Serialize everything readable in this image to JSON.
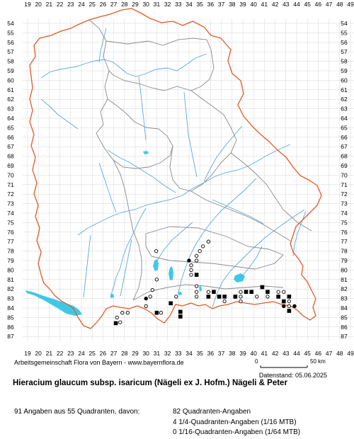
{
  "map": {
    "columns": [
      "19",
      "20",
      "21",
      "22",
      "23",
      "24",
      "25",
      "26",
      "27",
      "28",
      "29",
      "30",
      "31",
      "32",
      "33",
      "34",
      "35",
      "36",
      "37",
      "38",
      "39",
      "40",
      "41",
      "42",
      "43",
      "44",
      "45",
      "46",
      "47",
      "48",
      "49"
    ],
    "rows": [
      "54",
      "55",
      "56",
      "57",
      "58",
      "59",
      "60",
      "61",
      "62",
      "63",
      "64",
      "65",
      "66",
      "67",
      "68",
      "69",
      "70",
      "71",
      "72",
      "73",
      "74",
      "75",
      "76",
      "77",
      "78",
      "79",
      "80",
      "81",
      "82",
      "83",
      "84",
      "85",
      "86",
      "87"
    ],
    "colors": {
      "border": "#e05a28",
      "districts": "#8a8a8a",
      "rivers": "#5ba8e0",
      "lakes": "#3ec8e6",
      "grid": "#d6d6d6",
      "labels": "#000000"
    },
    "records": [
      {
        "col": 30.95,
        "row": 78.0,
        "symbol": "open-circle"
      },
      {
        "col": 31.0,
        "row": 81.0,
        "symbol": "open-circle"
      },
      {
        "col": 30.6,
        "row": 82.1,
        "symbol": "open-circle"
      },
      {
        "col": 30.0,
        "row": 83.0,
        "symbol": "filled-circle"
      },
      {
        "col": 30.4,
        "row": 82.8,
        "symbol": "open-circle"
      },
      {
        "col": 30.0,
        "row": 83.8,
        "symbol": "open-circle"
      },
      {
        "col": 28.3,
        "row": 84.5,
        "symbol": "open-circle"
      },
      {
        "col": 27.8,
        "row": 84.5,
        "symbol": "open-circle"
      },
      {
        "col": 27.3,
        "row": 85.0,
        "symbol": "open-circle"
      },
      {
        "col": 27.6,
        "row": 85.5,
        "symbol": "open-circle"
      },
      {
        "col": 27.2,
        "row": 85.6,
        "symbol": "filled-square"
      },
      {
        "col": 31.4,
        "row": 84.5,
        "symbol": "open-circle"
      },
      {
        "col": 31.0,
        "row": 84.5,
        "symbol": "filled-square"
      },
      {
        "col": 32.3,
        "row": 83.5,
        "symbol": "filled-square"
      },
      {
        "col": 32.8,
        "row": 82.8,
        "symbol": "open-circle"
      },
      {
        "col": 33.2,
        "row": 84.4,
        "symbol": "filled-square"
      },
      {
        "col": 33.2,
        "row": 84.9,
        "symbol": "filled-square"
      },
      {
        "col": 34.0,
        "row": 79.0,
        "symbol": "filled-circle"
      },
      {
        "col": 34.2,
        "row": 79.5,
        "symbol": "open-circle"
      },
      {
        "col": 34.2,
        "row": 80.0,
        "symbol": "open-circle"
      },
      {
        "col": 34.2,
        "row": 80.5,
        "symbol": "open-circle"
      },
      {
        "col": 34.7,
        "row": 80.5,
        "symbol": "filled-square"
      },
      {
        "col": 34.7,
        "row": 78.5,
        "symbol": "open-circle"
      },
      {
        "col": 34.7,
        "row": 79.0,
        "symbol": "open-circle"
      },
      {
        "col": 35.0,
        "row": 78.0,
        "symbol": "open-circle"
      },
      {
        "col": 35.3,
        "row": 77.5,
        "symbol": "open-circle"
      },
      {
        "col": 35.8,
        "row": 77.0,
        "symbol": "open-circle"
      },
      {
        "col": 34.7,
        "row": 81.7,
        "symbol": "open-circle"
      },
      {
        "col": 34.7,
        "row": 82.3,
        "symbol": "open-circle"
      },
      {
        "col": 34.7,
        "row": 82.8,
        "symbol": "open-circle"
      },
      {
        "col": 35.8,
        "row": 82.3,
        "symbol": "open-circle"
      },
      {
        "col": 35.8,
        "row": 82.8,
        "symbol": "filled-square"
      },
      {
        "col": 36.3,
        "row": 82.3,
        "symbol": "filled-square"
      },
      {
        "col": 36.8,
        "row": 82.8,
        "symbol": "filled-square"
      },
      {
        "col": 37.3,
        "row": 82.8,
        "symbol": "filled-square"
      },
      {
        "col": 37.3,
        "row": 83.3,
        "symbol": "open-circle"
      },
      {
        "col": 38.3,
        "row": 82.8,
        "symbol": "filled-square"
      },
      {
        "col": 38.8,
        "row": 82.3,
        "symbol": "open-circle"
      },
      {
        "col": 38.8,
        "row": 82.8,
        "symbol": "open-circle"
      },
      {
        "col": 38.8,
        "row": 83.3,
        "symbol": "open-circle"
      },
      {
        "col": 39.3,
        "row": 82.3,
        "symbol": "filled-square"
      },
      {
        "col": 39.8,
        "row": 82.3,
        "symbol": "filled-square"
      },
      {
        "col": 40.3,
        "row": 82.8,
        "symbol": "open-circle"
      },
      {
        "col": 40.8,
        "row": 81.8,
        "symbol": "filled-square"
      },
      {
        "col": 41.3,
        "row": 82.3,
        "symbol": "filled-square"
      },
      {
        "col": 41.3,
        "row": 82.8,
        "symbol": "open-circle"
      },
      {
        "col": 42.3,
        "row": 82.3,
        "symbol": "open-circle"
      },
      {
        "col": 42.8,
        "row": 82.3,
        "symbol": "open-circle"
      },
      {
        "col": 42.3,
        "row": 82.8,
        "symbol": "filled-square"
      },
      {
        "col": 42.8,
        "row": 83.3,
        "symbol": "filled-square"
      },
      {
        "col": 43.3,
        "row": 82.8,
        "symbol": "filled-square"
      },
      {
        "col": 43.3,
        "row": 83.3,
        "symbol": "open-circle"
      },
      {
        "col": 42.8,
        "row": 83.8,
        "symbol": "filled-circle"
      },
      {
        "col": 43.3,
        "row": 83.8,
        "symbol": "open-circle"
      },
      {
        "col": 43.8,
        "row": 83.8,
        "symbol": "filled-circle"
      },
      {
        "col": 43.3,
        "row": 84.3,
        "symbol": "filled-square"
      }
    ]
  },
  "footer": {
    "credit": "Arbeitsgemeinschaft Flora von Bayern - www.bayernflora.de",
    "scale_start": "0",
    "scale_end": "50 km",
    "date": "Datenstand: 05.06.2025",
    "title": "Hieracium glaucum subsp. isaricum (Nägeli ex J. Hofm.) Nägeli & Peter",
    "summary": "91 Angaben aus 55 Quadranten, davon:",
    "legend": [
      "82 Quadranten-Angaben",
      "4 1/4-Quadranten-Angaben (1/16 MTB)",
      "0 1/16-Quadranten-Angaben (1/64 MTB)"
    ]
  }
}
